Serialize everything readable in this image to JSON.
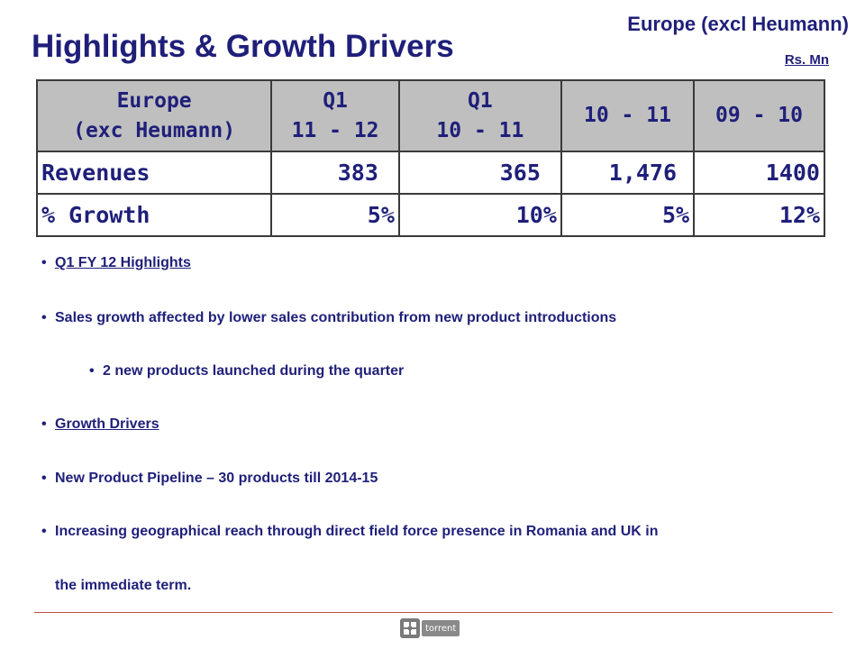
{
  "header": {
    "region": "Europe (excl Heumann)",
    "title": "Highlights & Growth Drivers",
    "unit": "Rs. Mn"
  },
  "table": {
    "corner_line1": "Europe",
    "corner_line2": "(exc Heumann)",
    "columns": [
      {
        "line1": "Q1",
        "line2": "11 - 12"
      },
      {
        "line1": "Q1",
        "line2": "10 - 11"
      },
      {
        "line1": "10 - 11",
        "line2": ""
      },
      {
        "line1": "09 - 10",
        "line2": ""
      }
    ],
    "rows": [
      {
        "label": "Revenues",
        "values": [
          "383",
          "365",
          "1,476",
          "1400"
        ]
      },
      {
        "label": "% Growth",
        "values": [
          "5%",
          "10%",
          "5%",
          "12%"
        ]
      }
    ]
  },
  "bullets": [
    {
      "text": "Q1 FY 12 Highlights"
    },
    {
      "text": "Sales growth affected by lower sales contribution from new product introductions"
    },
    {
      "text": "2 new products launched during the quarter"
    },
    {
      "text": "Growth Drivers"
    },
    {
      "text": "New Product Pipeline – 30 products till 2014-15"
    },
    {
      "text": "Increasing geographical reach through direct field force presence in Romania and UK in",
      "continuation": "the immediate term."
    }
  ],
  "footer": {
    "logo_text": "torrent",
    "logo_icon": "torrent-logo-icon",
    "divider_color": "#c0504d"
  }
}
